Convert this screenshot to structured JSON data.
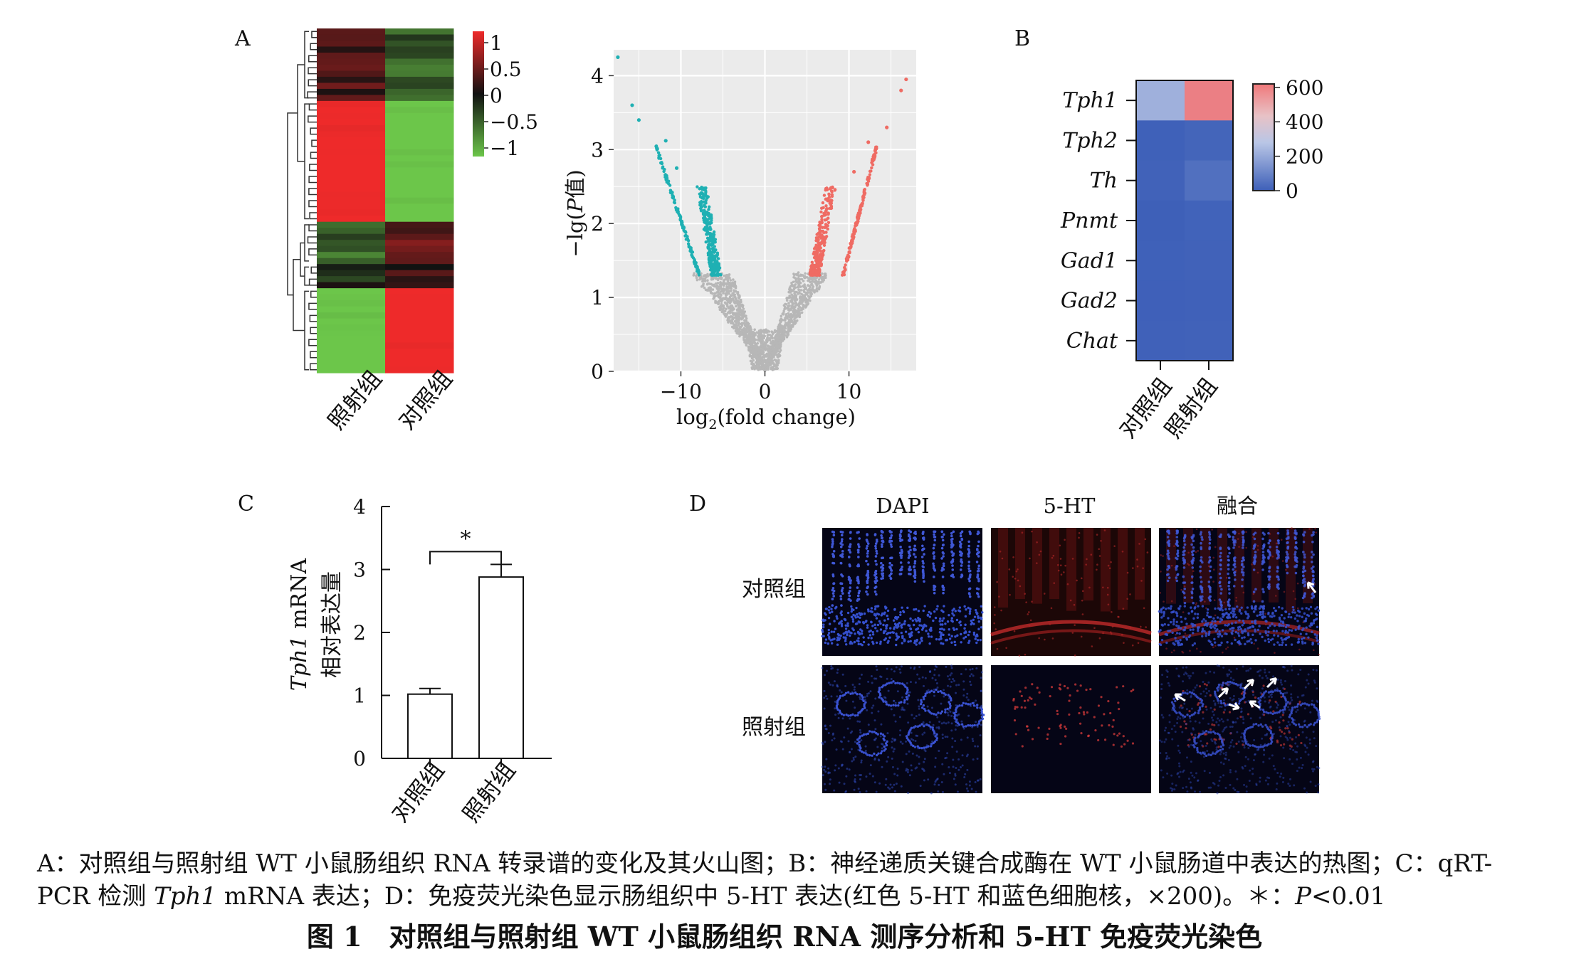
{
  "panel_labels": {
    "A": "A",
    "B": "B",
    "C": "C",
    "D": "D"
  },
  "heatmap_a": {
    "columns": [
      "照射组",
      "对照组"
    ],
    "colorbar_ticks": [
      "1",
      "0.5",
      "0",
      "−0.5",
      "−1"
    ],
    "colors": {
      "high": "#ee2a2a",
      "mid": "#111111",
      "low": "#6cc64a"
    }
  },
  "volcano": {
    "xlabel_prefix": "log",
    "xlabel_sub": "2",
    "xlabel_suffix": "(fold change)",
    "ylabel_prefix": "−lg(",
    "ylabel_italic": "P",
    "ylabel_suffix": "值)",
    "xticks": [
      "−10",
      "0",
      "10"
    ],
    "yticks": [
      "0",
      "1",
      "2",
      "3",
      "4"
    ],
    "colors": {
      "down": "#1fb0b3",
      "up": "#ef6b63",
      "ns": "#b7b7b7",
      "panel_bg": "#ebebeb"
    }
  },
  "heatmap_b": {
    "genes": [
      "Tph1",
      "Tph2",
      "Th",
      "Pnmt",
      "Gad1",
      "Gad2",
      "Chat"
    ],
    "columns": [
      "对照组",
      "照射组"
    ],
    "colorbar_ticks": [
      "600",
      "400",
      "200",
      "0"
    ],
    "colors": {
      "high": "#f0787a",
      "mid": "#b9c6e6",
      "low": "#3d5fb8"
    }
  },
  "panel_c": {
    "ylabel_italic": "Tph1",
    "ylabel_rest": " mRNA",
    "ylabel_line2": "相对表达量",
    "significance": "*",
    "yticks": [
      "0",
      "1",
      "2",
      "3",
      "4"
    ]
  },
  "panel_d": {
    "columns": [
      "DAPI",
      "5-HT",
      "融合"
    ],
    "rows": [
      "对照组",
      "照射组"
    ]
  },
  "caption": {
    "line1": "A：对照组与照射组 WT 小鼠肠组织 RNA 转录谱的变化及其火山图；B：神经递质关键合成酶在 WT 小鼠肠道中表达的热图；C：qRT-",
    "line2_a": "PCR 检测 ",
    "line2_italic": "Tph1",
    "line2_b": " mRNA 表达；D：免疫荧光染色显示肠组织中 5-HT 表达(红色 5-HT 和蓝色细胞核，×200)。＊：",
    "line2_italic2": "P",
    "line2_c": "<0.01"
  },
  "figure_title": "图 1　对照组与照射组 WT 小鼠肠组织 RNA 测序分析和 5-HT 免疫荧光染色",
  "chart_data": [
    {
      "type": "heatmap",
      "columns": [
        "照射组",
        "对照组"
      ],
      "row_blocks": [
        {
          "rows": 12,
          "values": [
            0.25,
            -0.45
          ]
        },
        {
          "rows": 20,
          "values": [
            1.0,
            -1.0
          ]
        },
        {
          "rows": 7,
          "values": [
            -0.4,
            0.35
          ]
        },
        {
          "rows": 4,
          "values": [
            -0.15,
            0.1
          ]
        },
        {
          "rows": 14,
          "values": [
            -1.0,
            1.0
          ]
        }
      ],
      "colorbar": {
        "min": -1,
        "max": 1
      }
    },
    {
      "type": "scatter",
      "x_range": [
        -18,
        18
      ],
      "y_range": [
        0,
        4.35
      ],
      "xticks": [
        -10,
        0,
        10
      ],
      "yticks": [
        0,
        1,
        2,
        3,
        4
      ],
      "series": [
        {
          "points": [
            [
              -17.5,
              4.25
            ],
            [
              -15.8,
              3.6
            ],
            [
              -15.0,
              3.4
            ],
            [
              -11.8,
              3.12
            ],
            [
              -10.5,
              2.75
            ]
          ]
        },
        {
          "points": [
            [
              16.8,
              3.95
            ],
            [
              16.2,
              3.8
            ],
            [
              14.5,
              3.3
            ],
            [
              12.3,
              3.1
            ],
            [
              10.6,
              2.7
            ]
          ]
        }
      ]
    },
    {
      "type": "heatmap",
      "rows": [
        "Tph1",
        "Tph2",
        "Th",
        "Pnmt",
        "Gad1",
        "Gad2",
        "Chat"
      ],
      "columns": [
        "对照组",
        "照射组"
      ],
      "values": [
        [
          220,
          560
        ],
        [
          5,
          15
        ],
        [
          8,
          45
        ],
        [
          3,
          10
        ],
        [
          5,
          8
        ],
        [
          4,
          6
        ],
        [
          6,
          9
        ]
      ],
      "colorbar": {
        "min": 0,
        "max": 620,
        "ticks": [
          0,
          200,
          400,
          600
        ]
      }
    },
    {
      "type": "bar",
      "categories": [
        "对照组",
        "照射组"
      ],
      "values": [
        1.02,
        2.88
      ],
      "errors": [
        0.09,
        0.2
      ],
      "ylim": [
        0,
        4
      ]
    }
  ]
}
